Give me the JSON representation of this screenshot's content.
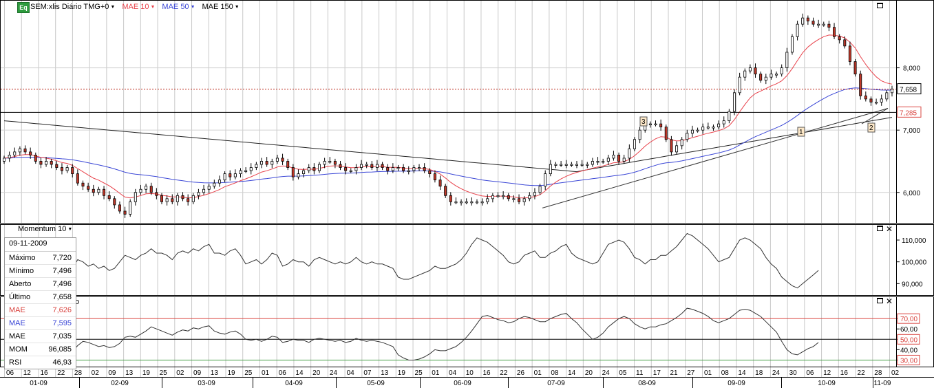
{
  "header": {
    "logo": "Eq",
    "symbol": "SEM:xlis Diário TMG+0",
    "mae10_label": "MAE 10",
    "mae50_label": "MAE 50",
    "mae150_label": "MAE 150"
  },
  "colors": {
    "price_up": "#ffffff",
    "price_down": "#c0392b",
    "mae10": "#e8414a",
    "mae50": "#3a46d6",
    "mae150": "#222222",
    "rsi_upper": "#d9443f",
    "rsi_lower": "#3f9a3f",
    "last_price_line": "#c0392b"
  },
  "momentum_panel": {
    "title": "Momentum 10"
  },
  "rsi_panel": {
    "title": "o"
  },
  "info_box": {
    "date": "09-11-2009",
    "rows": [
      {
        "label": "Máximo",
        "value": "7,720",
        "color": "#000000"
      },
      {
        "label": "Mínimo",
        "value": "7,496",
        "color": "#000000"
      },
      {
        "label": "Aberto",
        "value": "7,496",
        "color": "#000000"
      },
      {
        "label": "Último",
        "value": "7,658",
        "color": "#000000"
      },
      {
        "label": "MAE",
        "value": "7,626",
        "color": "#d9443f"
      },
      {
        "label": "MAE",
        "value": "7,595",
        "color": "#3a46d6"
      },
      {
        "label": "MAE",
        "value": "7,035",
        "color": "#000000"
      },
      {
        "label": "MOM",
        "value": "96,085",
        "color": "#000000"
      },
      {
        "label": "RSI",
        "value": "46,93",
        "color": "#000000"
      }
    ]
  },
  "annotations": [
    "3",
    "1",
    "2"
  ],
  "chart_data": [
    {
      "type": "candlestick",
      "title": "SEM:xlis Diário TMG+0",
      "ylim": [
        5.6,
        9.0
      ],
      "y_ticks": [
        {
          "v": 6.0,
          "label": "6,000"
        },
        {
          "v": 7.0,
          "label": "7,000"
        },
        {
          "v": 8.0,
          "label": "8,000"
        }
      ],
      "last_price": {
        "value": 7.658,
        "label": "7,658"
      },
      "horizontal_line": {
        "value": 7.285,
        "label": "7,285"
      },
      "day_ticks": [
        "06",
        "12",
        "16",
        "22",
        "28",
        "02",
        "09",
        "13",
        "19",
        "25",
        "02",
        "09",
        "13",
        "19",
        "25",
        "01",
        "06",
        "14",
        "20",
        "24",
        "04",
        "07",
        "13",
        "19",
        "25",
        "01",
        "04",
        "10",
        "16",
        "22",
        "26",
        "01",
        "08",
        "14",
        "20",
        "24",
        "05",
        "11",
        "17",
        "21",
        "27",
        "01",
        "08",
        "14",
        "18",
        "24",
        "30",
        "06",
        "12",
        "16",
        "22",
        "28",
        "02"
      ],
      "month_labels": [
        "01-09",
        "02-09",
        "03-09",
        "04-09",
        "05-09",
        "06-09",
        "07-09",
        "08-09",
        "09-09",
        "10-09",
        "11-09"
      ],
      "close": [
        6.55,
        6.6,
        6.65,
        6.7,
        6.65,
        6.6,
        6.5,
        6.45,
        6.5,
        6.45,
        6.4,
        6.35,
        6.4,
        6.3,
        6.15,
        6.1,
        6.05,
        6.0,
        6.05,
        5.95,
        5.9,
        5.8,
        5.7,
        5.65,
        5.85,
        6.0,
        6.05,
        6.1,
        6.0,
        5.95,
        5.85,
        5.9,
        5.85,
        5.95,
        5.9,
        5.85,
        5.95,
        6.0,
        6.05,
        6.1,
        6.15,
        6.2,
        6.3,
        6.25,
        6.3,
        6.35,
        6.35,
        6.4,
        6.45,
        6.5,
        6.45,
        6.5,
        6.55,
        6.5,
        6.4,
        6.25,
        6.3,
        6.35,
        6.4,
        6.35,
        6.45,
        6.5,
        6.5,
        6.45,
        6.4,
        6.35,
        6.35,
        6.4,
        6.45,
        6.45,
        6.4,
        6.45,
        6.4,
        6.35,
        6.4,
        6.4,
        6.35,
        6.35,
        6.4,
        6.4,
        6.35,
        6.3,
        6.2,
        6.1,
        5.95,
        5.85,
        5.85,
        5.85,
        5.85,
        5.85,
        5.85,
        5.85,
        5.9,
        5.95,
        5.95,
        5.95,
        5.9,
        5.9,
        5.85,
        5.9,
        5.95,
        6.0,
        6.1,
        6.3,
        6.45,
        6.45,
        6.45,
        6.45,
        6.45,
        6.45,
        6.45,
        6.45,
        6.5,
        6.5,
        6.5,
        6.55,
        6.6,
        6.5,
        6.55,
        6.7,
        6.85,
        7.0,
        7.1,
        7.1,
        7.1,
        7.05,
        6.85,
        6.65,
        6.75,
        6.85,
        6.95,
        7.0,
        7.0,
        7.05,
        7.05,
        7.05,
        7.1,
        7.15,
        7.3,
        7.6,
        7.85,
        7.95,
        8.0,
        7.9,
        7.8,
        7.85,
        7.9,
        7.9,
        8.0,
        8.25,
        8.5,
        8.7,
        8.8,
        8.75,
        8.7,
        8.7,
        8.7,
        8.65,
        8.5,
        8.45,
        8.35,
        8.1,
        7.9,
        7.55,
        7.5,
        7.45,
        7.45,
        7.5,
        7.6,
        7.658
      ],
      "momentum": [
        98,
        97,
        96,
        97,
        97,
        95,
        94,
        92,
        93,
        92,
        91,
        94,
        93,
        97,
        101,
        100,
        98,
        99,
        97,
        98,
        96,
        97,
        100,
        103,
        102,
        101,
        103,
        104,
        106,
        104,
        104,
        103,
        101,
        104,
        105,
        104,
        106,
        105,
        107,
        108,
        104,
        104,
        103,
        105,
        106,
        103,
        99,
        100,
        101,
        99,
        101,
        104,
        103,
        98,
        99,
        101,
        100,
        100,
        98,
        101,
        102,
        101,
        100,
        99,
        100,
        99,
        100,
        102,
        100,
        99,
        100,
        99,
        99,
        98,
        97,
        93,
        92,
        92,
        93,
        94,
        95,
        96,
        98,
        97,
        97,
        98,
        99,
        101,
        104,
        108,
        111,
        110,
        109,
        107,
        105,
        103,
        100,
        99,
        100,
        103,
        104,
        105,
        102,
        102,
        104,
        105,
        107,
        108,
        104,
        102,
        101,
        100,
        99,
        100,
        104,
        108,
        109,
        110,
        109,
        106,
        102,
        101,
        99,
        101,
        101,
        103,
        103,
        105,
        107,
        110,
        113,
        112,
        110,
        108,
        106,
        103,
        100,
        101,
        102,
        106,
        110,
        111,
        110,
        108,
        106,
        102,
        99,
        97,
        93,
        91,
        89,
        88,
        90,
        92,
        94,
        96.085
      ],
      "momentum_ylim": [
        86,
        116
      ],
      "momentum_ticks": [
        {
          "v": 90,
          "label": "90,000"
        },
        {
          "v": 100,
          "label": "100,000"
        },
        {
          "v": 110,
          "label": "110,000"
        }
      ],
      "rsi": [
        45,
        40,
        38,
        37,
        36,
        35,
        33,
        32,
        31,
        30,
        30,
        31,
        33,
        38,
        44,
        48,
        47,
        45,
        43,
        44,
        42,
        43,
        46,
        52,
        53,
        52,
        55,
        58,
        62,
        60,
        58,
        56,
        54,
        57,
        59,
        58,
        61,
        60,
        62,
        63,
        58,
        56,
        55,
        57,
        58,
        55,
        50,
        49,
        50,
        48,
        50,
        53,
        52,
        47,
        48,
        50,
        49,
        49,
        47,
        50,
        51,
        50,
        49,
        48,
        49,
        47,
        48,
        51,
        49,
        48,
        49,
        48,
        47,
        45,
        43,
        35,
        32,
        30,
        30,
        31,
        33,
        36,
        40,
        39,
        39,
        41,
        43,
        47,
        52,
        58,
        65,
        72,
        73,
        71,
        69,
        68,
        66,
        67,
        70,
        72,
        71,
        69,
        67,
        67,
        70,
        72,
        74,
        75,
        70,
        66,
        60,
        55,
        50,
        52,
        56,
        62,
        66,
        70,
        72,
        70,
        65,
        62,
        60,
        62,
        62,
        64,
        65,
        68,
        71,
        75,
        80,
        79,
        77,
        75,
        72,
        68,
        66,
        68,
        70,
        74,
        78,
        79,
        78,
        75,
        72,
        67,
        62,
        57,
        48,
        40,
        36,
        35,
        38,
        41,
        43,
        46.93
      ],
      "rsi_ylim": [
        25,
        90
      ],
      "rsi_ticks": [
        {
          "v": 30,
          "label": "30,00"
        },
        {
          "v": 40,
          "label": "40,00"
        },
        {
          "v": 50,
          "label": "50,00"
        },
        {
          "v": 60,
          "label": "60,00"
        },
        {
          "v": 70,
          "label": "70,00"
        }
      ],
      "rsi_levels": [
        30,
        50,
        70
      ]
    }
  ]
}
